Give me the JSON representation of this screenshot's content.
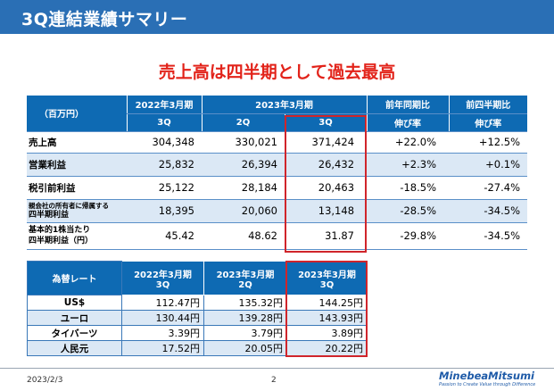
{
  "header": {
    "title": "3Q連結業績サマリー"
  },
  "headline": "売上高は四半期として過去最高",
  "results_table": {
    "unit_label": "（百万円）",
    "col_headers": {
      "fy2022": "2022年3月期",
      "fy2023": "2023年3月期",
      "yoy_line1": "前年同期比",
      "yoy_line2": "伸び率",
      "qoq_line1": "前四半期比",
      "qoq_line2": "伸び率",
      "q3_a": "3Q",
      "q2": "2Q",
      "q3_b": "3Q"
    },
    "rows": [
      {
        "label": "売上高",
        "v1": "304,348",
        "v2": "330,021",
        "v3": "371,424",
        "yoy": "+22.0%",
        "qoq": "+12.5%"
      },
      {
        "label": "営業利益",
        "v1": "25,832",
        "v2": "26,394",
        "v3": "26,432",
        "yoy": "+2.3%",
        "qoq": "+0.1%"
      },
      {
        "label": "税引前利益",
        "v1": "25,122",
        "v2": "28,184",
        "v3": "20,463",
        "yoy": "-18.5%",
        "qoq": "-27.4%"
      },
      {
        "label_line1": "親会社の所有者に帰属する",
        "label_line2": "四半期利益",
        "v1": "18,395",
        "v2": "20,060",
        "v3": "13,148",
        "yoy": "-28.5%",
        "qoq": "-34.5%"
      },
      {
        "label_line1": "基本的1株当たり",
        "label_line2": "四半期利益（円）",
        "v1": "45.42",
        "v2": "48.62",
        "v3": "31.87",
        "yoy": "-29.8%",
        "qoq": "-34.5%"
      }
    ]
  },
  "fx_table": {
    "title": "為替レート",
    "cols": [
      {
        "line1": "2022年3月期",
        "line2": "3Q"
      },
      {
        "line1": "2023年3月期",
        "line2": "2Q"
      },
      {
        "line1": "2023年3月期",
        "line2": "3Q"
      }
    ],
    "rows": [
      {
        "label": "US$",
        "v1": "112.47円",
        "v2": "135.32円",
        "v3": "144.25円"
      },
      {
        "label": "ユーロ",
        "v1": "130.44円",
        "v2": "139.28円",
        "v3": "143.93円"
      },
      {
        "label": "タイバーツ",
        "v1": "3.39円",
        "v2": "3.79円",
        "v3": "3.89円"
      },
      {
        "label": "人民元",
        "v1": "17.52円",
        "v2": "20.05円",
        "v3": "20.22円"
      }
    ]
  },
  "footer": {
    "date": "2023/2/3",
    "page": "2",
    "logo": "MinebeaMitsumi",
    "tagline": "Passion to Create Value through Difference"
  },
  "colors": {
    "header_blue": "#2a6fb5",
    "table_blue": "#0e6ab3",
    "highlight_red": "#d0252b",
    "headline_red": "#e2231a"
  }
}
